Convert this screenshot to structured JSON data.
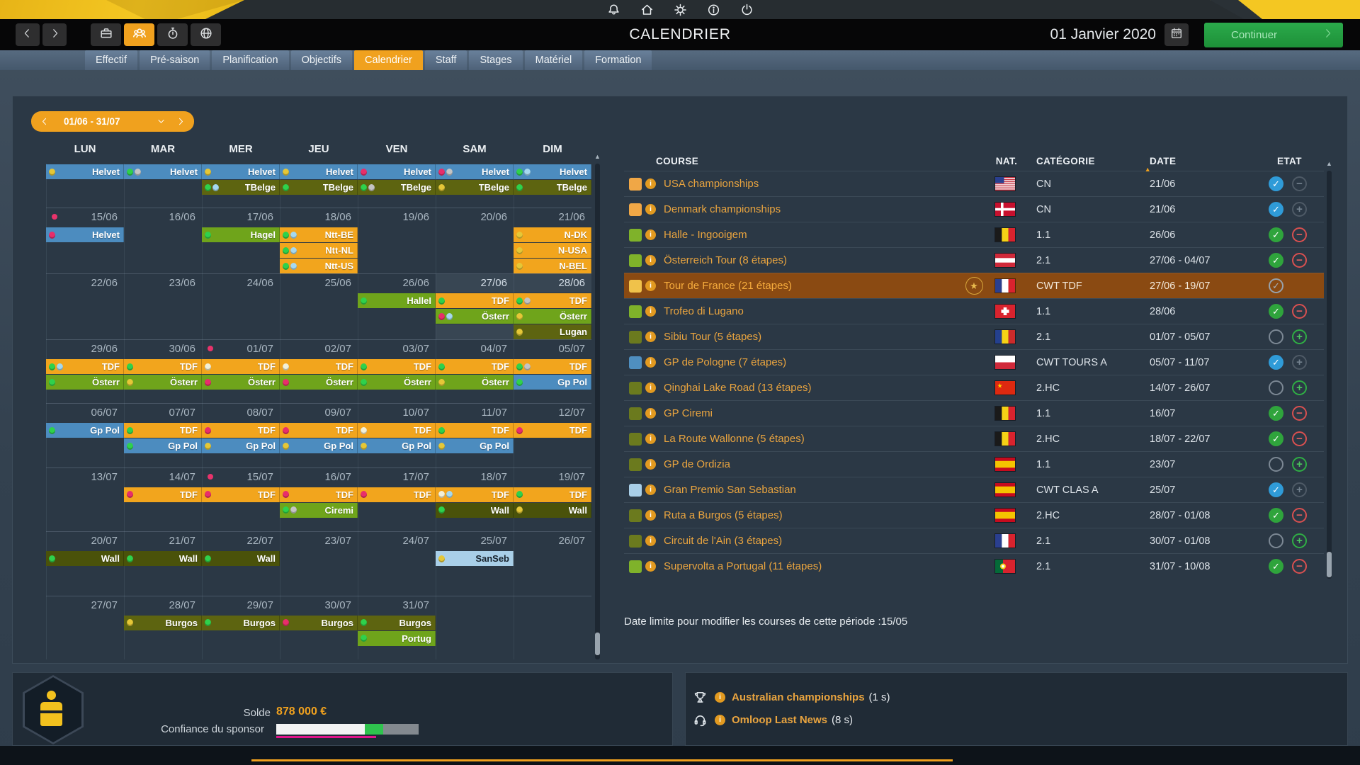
{
  "topbar": {
    "title": "CALENDRIER",
    "date": "01 Janvier 2020",
    "continue_label": "Continuer",
    "system_icons": [
      "bell",
      "home",
      "settings",
      "info",
      "power"
    ],
    "nav_icons": [
      "briefcase",
      "team",
      "stopwatch",
      "globe"
    ],
    "active_nav_icon": "team"
  },
  "tabs": {
    "items": [
      "Effectif",
      "Pré-saison",
      "Planification",
      "Objectifs",
      "Calendrier",
      "Staff",
      "Stages",
      "Matériel",
      "Formation"
    ],
    "active": "Calendrier"
  },
  "calendar": {
    "range_label": "01/06 - 31/07",
    "day_headers": [
      "LUN",
      "MAR",
      "MER",
      "JEU",
      "VEN",
      "SAM",
      "DIM"
    ],
    "weeks": [
      {
        "dates": null,
        "lanes": [
          [
            {
              "t": "Helvet",
              "c": "blue",
              "d": [
                "yellow"
              ]
            },
            {
              "t": "Helvet",
              "c": "blue",
              "d": [
                "green",
                "gray"
              ]
            },
            {
              "t": "Helvet",
              "c": "blue",
              "d": [
                "yellow"
              ]
            },
            {
              "t": "Helvet",
              "c": "blue",
              "d": [
                "yellow"
              ]
            },
            {
              "t": "Helvet",
              "c": "blue",
              "d": [
                "pink"
              ]
            },
            {
              "t": "Helvet",
              "c": "blue",
              "d": [
                "pink",
                "gray"
              ]
            },
            {
              "t": "Helvet",
              "c": "blue",
              "d": [
                "green",
                "lblue"
              ]
            }
          ],
          [
            null,
            null,
            {
              "t": "TBelge",
              "c": "olive",
              "d": [
                "green",
                "lblue"
              ]
            },
            {
              "t": "TBelge",
              "c": "olive",
              "d": [
                "green"
              ]
            },
            {
              "t": "TBelge",
              "c": "olive",
              "d": [
                "green",
                "gray"
              ]
            },
            {
              "t": "TBelge",
              "c": "olive",
              "d": [
                "yellow"
              ]
            },
            {
              "t": "TBelge",
              "c": "olive",
              "d": [
                "green"
              ]
            }
          ]
        ]
      },
      {
        "dates": [
          "15/06",
          "16/06",
          "17/06",
          "18/06",
          "19/06",
          "20/06",
          "21/06"
        ],
        "ddots": [
          0
        ],
        "lanes": [
          [
            {
              "t": "Helvet",
              "c": "blue",
              "d": [
                "pink"
              ]
            },
            null,
            {
              "t": "Hagel",
              "c": "green",
              "d": [
                "green"
              ]
            },
            {
              "t": "Ntt-BE",
              "c": "orange",
              "d": [
                "green",
                "lblue"
              ]
            },
            null,
            null,
            {
              "t": "N-DK",
              "c": "orange",
              "d": [
                "yellow"
              ]
            }
          ],
          [
            null,
            null,
            null,
            {
              "t": "Ntt-NL",
              "c": "orange",
              "d": [
                "green",
                "lblue"
              ]
            },
            null,
            null,
            {
              "t": "N-USA",
              "c": "orange",
              "d": [
                "yellow"
              ]
            }
          ],
          [
            null,
            null,
            null,
            {
              "t": "Ntt-US",
              "c": "orange",
              "d": [
                "green",
                "lblue"
              ]
            },
            null,
            null,
            {
              "t": "N-BEL",
              "c": "orange",
              "d": [
                "yellow"
              ]
            }
          ]
        ]
      },
      {
        "dates": [
          "22/06",
          "23/06",
          "24/06",
          "25/06",
          "26/06",
          "27/06",
          "28/06"
        ],
        "hl": [
          5,
          6
        ],
        "lanes": [
          [
            null,
            null,
            null,
            null,
            {
              "t": "HalleI",
              "c": "green",
              "d": [
                "green"
              ]
            },
            {
              "t": "TDF",
              "c": "orange",
              "d": [
                "green"
              ]
            },
            {
              "t": "TDF",
              "c": "orange",
              "d": [
                "green",
                "gray"
              ]
            }
          ],
          [
            null,
            null,
            null,
            null,
            null,
            {
              "t": "Österr",
              "c": "green",
              "d": [
                "pink",
                "lblue"
              ]
            },
            {
              "t": "Österr",
              "c": "green",
              "d": [
                "yellow"
              ]
            }
          ],
          [
            null,
            null,
            null,
            null,
            null,
            null,
            {
              "t": "Lugan",
              "c": "olive",
              "d": [
                "yellow"
              ]
            }
          ]
        ]
      },
      {
        "dates": [
          "29/06",
          "30/06",
          "01/07",
          "02/07",
          "03/07",
          "04/07",
          "05/07"
        ],
        "ddots": [
          2
        ],
        "lanes": [
          [
            {
              "t": "TDF",
              "c": "orange",
              "d": [
                "green",
                "lblue"
              ]
            },
            {
              "t": "TDF",
              "c": "orange",
              "d": [
                "green"
              ]
            },
            {
              "t": "TDF",
              "c": "orange",
              "d": [
                "white"
              ]
            },
            {
              "t": "TDF",
              "c": "orange",
              "d": [
                "white"
              ]
            },
            {
              "t": "TDF",
              "c": "orange",
              "d": [
                "green"
              ]
            },
            {
              "t": "TDF",
              "c": "orange",
              "d": [
                "green"
              ]
            },
            {
              "t": "TDF",
              "c": "orange",
              "d": [
                "green",
                "gray"
              ]
            }
          ],
          [
            {
              "t": "Österr",
              "c": "green",
              "d": [
                "green"
              ]
            },
            {
              "t": "Österr",
              "c": "green",
              "d": [
                "yellow"
              ]
            },
            {
              "t": "Österr",
              "c": "green",
              "d": [
                "pink"
              ]
            },
            {
              "t": "Österr",
              "c": "green",
              "d": [
                "pink"
              ]
            },
            {
              "t": "Österr",
              "c": "green",
              "d": [
                "green"
              ]
            },
            {
              "t": "Österr",
              "c": "green",
              "d": [
                "yellow"
              ]
            },
            {
              "t": "Gp Pol",
              "c": "blue",
              "d": [
                "green"
              ]
            }
          ]
        ]
      },
      {
        "dates": [
          "06/07",
          "07/07",
          "08/07",
          "09/07",
          "10/07",
          "11/07",
          "12/07"
        ],
        "lanes": [
          [
            {
              "t": "Gp Pol",
              "c": "blue",
              "d": [
                "green"
              ]
            },
            {
              "t": "TDF",
              "c": "orange",
              "d": [
                "green"
              ]
            },
            {
              "t": "TDF",
              "c": "orange",
              "d": [
                "pink"
              ]
            },
            {
              "t": "TDF",
              "c": "orange",
              "d": [
                "pink"
              ]
            },
            {
              "t": "TDF",
              "c": "orange",
              "d": [
                "white"
              ]
            },
            {
              "t": "TDF",
              "c": "orange",
              "d": [
                "green"
              ]
            },
            {
              "t": "TDF",
              "c": "orange",
              "d": [
                "pink"
              ]
            }
          ],
          [
            null,
            {
              "t": "Gp Pol",
              "c": "blue",
              "d": [
                "green"
              ]
            },
            {
              "t": "Gp Pol",
              "c": "blue",
              "d": [
                "yellow"
              ]
            },
            {
              "t": "Gp Pol",
              "c": "blue",
              "d": [
                "yellow"
              ]
            },
            {
              "t": "Gp Pol",
              "c": "blue",
              "d": [
                "yellow"
              ]
            },
            {
              "t": "Gp Pol",
              "c": "blue",
              "d": [
                "yellow"
              ]
            },
            null
          ]
        ]
      },
      {
        "dates": [
          "13/07",
          "14/07",
          "15/07",
          "16/07",
          "17/07",
          "18/07",
          "19/07"
        ],
        "ddots": [
          2
        ],
        "lanes": [
          [
            null,
            {
              "t": "TDF",
              "c": "orange",
              "d": [
                "pink"
              ]
            },
            {
              "t": "TDF",
              "c": "orange",
              "d": [
                "pink"
              ]
            },
            {
              "t": "TDF",
              "c": "orange",
              "d": [
                "pink"
              ]
            },
            {
              "t": "TDF",
              "c": "orange",
              "d": [
                "pink"
              ]
            },
            {
              "t": "TDF",
              "c": "orange",
              "d": [
                "white",
                "lblue"
              ]
            },
            {
              "t": "TDF",
              "c": "orange",
              "d": [
                "green"
              ]
            }
          ],
          [
            null,
            null,
            null,
            {
              "t": "Ciremi",
              "c": "green",
              "d": [
                "green",
                "gray"
              ]
            },
            null,
            {
              "t": "Wall",
              "c": "dolive",
              "d": [
                "green"
              ]
            },
            {
              "t": "Wall",
              "c": "dolive",
              "d": [
                "yellow"
              ]
            }
          ]
        ]
      },
      {
        "dates": [
          "20/07",
          "21/07",
          "22/07",
          "23/07",
          "24/07",
          "25/07",
          "26/07"
        ],
        "lanes": [
          [
            {
              "t": "Wall",
              "c": "dolive",
              "d": [
                "green"
              ]
            },
            {
              "t": "Wall",
              "c": "dolive",
              "d": [
                "green"
              ]
            },
            {
              "t": "Wall",
              "c": "dolive",
              "d": [
                "green"
              ]
            },
            null,
            null,
            {
              "t": "SanSeb",
              "c": "lblue",
              "d": [
                "yellow"
              ],
              "dark": true
            },
            null
          ]
        ]
      },
      {
        "dates": [
          "27/07",
          "28/07",
          "29/07",
          "30/07",
          "31/07",
          "",
          ""
        ],
        "lanes": [
          [
            null,
            {
              "t": "Burgos",
              "c": "olive",
              "d": [
                "yellow"
              ]
            },
            {
              "t": "Burgos",
              "c": "olive",
              "d": [
                "green"
              ]
            },
            {
              "t": "Burgos",
              "c": "olive",
              "d": [
                "pink"
              ]
            },
            {
              "t": "Burgos",
              "c": "olive",
              "d": [
                "green"
              ]
            },
            null,
            null
          ],
          [
            null,
            null,
            null,
            null,
            {
              "t": "Portug",
              "c": "green",
              "d": [
                "green"
              ]
            },
            null,
            null
          ]
        ]
      }
    ]
  },
  "course_table": {
    "headers": [
      "COURSE",
      "NAT.",
      "CATÉGORIE",
      "DATE",
      "ETAT"
    ],
    "rows": [
      {
        "square": "orange",
        "name": "USA championships",
        "flag": "us",
        "cat": "CN",
        "date": "21/06",
        "state": "blue-check",
        "action": "minus-faded"
      },
      {
        "square": "orange",
        "name": "Denmark championships",
        "flag": "dk",
        "cat": "CN",
        "date": "21/06",
        "state": "blue-check",
        "action": "plus-faded"
      },
      {
        "square": "green",
        "name": "Halle - Ingooigem",
        "flag": "be",
        "cat": "1.1",
        "date": "26/06",
        "state": "green-check",
        "action": "minus-red"
      },
      {
        "square": "green",
        "name": "Österreich Tour (8 étapes)",
        "flag": "at",
        "cat": "2.1",
        "date": "27/06 - 04/07",
        "state": "green-check",
        "action": "minus-red"
      },
      {
        "square": "yellow",
        "name": "Tour de France (21 étapes)",
        "flag": "fr",
        "cat": "CWT TDF",
        "date": "27/06 - 19/07",
        "state": "gray-check",
        "action": "none",
        "selected": true,
        "star": true
      },
      {
        "square": "green",
        "name": "Trofeo di Lugano",
        "flag": "ch",
        "cat": "1.1",
        "date": "28/06",
        "state": "green-check",
        "action": "minus-red"
      },
      {
        "square": "olive",
        "name": "Sibiu Tour (5 étapes)",
        "flag": "ro",
        "cat": "2.1",
        "date": "01/07 - 05/07",
        "state": "empty",
        "action": "plus-green"
      },
      {
        "square": "blue",
        "name": "GP de Pologne (7 étapes)",
        "flag": "pl",
        "cat": "CWT TOURS A",
        "date": "05/07 - 11/07",
        "state": "blue-check",
        "action": "plus-faded"
      },
      {
        "square": "olive",
        "name": "Qinghai Lake Road (13 étapes)",
        "flag": "cn",
        "cat": "2.HC",
        "date": "14/07 - 26/07",
        "state": "empty",
        "action": "plus-green"
      },
      {
        "square": "olive",
        "name": "GP Ciremi",
        "flag": "be",
        "cat": "1.1",
        "date": "16/07",
        "state": "green-check",
        "action": "minus-red"
      },
      {
        "square": "olive",
        "name": "La Route Wallonne (5 étapes)",
        "flag": "be",
        "cat": "2.HC",
        "date": "18/07 - 22/07",
        "state": "green-check",
        "action": "minus-red"
      },
      {
        "square": "olive",
        "name": "GP de Ordizia",
        "flag": "es",
        "cat": "1.1",
        "date": "23/07",
        "state": "empty",
        "action": "plus-green"
      },
      {
        "square": "lblue",
        "name": "Gran Premio San Sebastian",
        "flag": "es",
        "cat": "CWT CLAS A",
        "date": "25/07",
        "state": "blue-check",
        "action": "plus-faded"
      },
      {
        "square": "olive",
        "name": "Ruta a Burgos (5 étapes)",
        "flag": "es",
        "cat": "2.HC",
        "date": "28/07 - 01/08",
        "state": "green-check",
        "action": "minus-red"
      },
      {
        "square": "olive",
        "name": "Circuit de l'Ain (3 étapes)",
        "flag": "fr",
        "cat": "2.1",
        "date": "30/07 - 01/08",
        "state": "empty",
        "action": "plus-green"
      },
      {
        "square": "green",
        "name": "Supervolta a Portugal (11 étapes)",
        "flag": "pt",
        "cat": "2.1",
        "date": "31/07 - 10/08",
        "state": "green-check",
        "action": "minus-red"
      }
    ],
    "footnote": "Date limite pour modifier les courses de cette période :15/05"
  },
  "footer": {
    "solde_label": "Solde",
    "solde_value": "878 000 €",
    "sponsor_label": "Confiance du sponsor",
    "sponsor_bar": {
      "segments": [
        {
          "color": "#f2f3f4",
          "pct": 62
        },
        {
          "color": "#2fc34e",
          "pct": 13
        },
        {
          "color": "#83898f",
          "pct": 25
        }
      ],
      "underline_color": "#e0148c",
      "underline_pct": 70
    },
    "news": [
      {
        "icon": "trophy",
        "text": "Australian championships",
        "suffix": "(1 s)"
      },
      {
        "icon": "headset",
        "text": "Omloop Last News",
        "suffix": "(8 s)"
      }
    ]
  },
  "colors": {
    "accent": "#f0a11e",
    "event": {
      "orange": "#f2a51d",
      "blue": "#4c8cbf",
      "green": "#6fa41b",
      "olive": "#5d6410",
      "dolive": "#4a520a",
      "lblue": "#a9cfe8"
    },
    "dot": {
      "yellow": "#e5c737",
      "green": "#2fd14c",
      "gray": "#c4c4c4",
      "pink": "#e82e6b",
      "lblue": "#a5d8ef",
      "white": "#f2f0d8"
    },
    "square": {
      "orange": "#f0a746",
      "green": "#7fb22a",
      "olive": "#6b7a1e",
      "blue": "#4f8fc0",
      "lblue": "#a9cfe8",
      "yellow": "#f0c24a"
    }
  }
}
